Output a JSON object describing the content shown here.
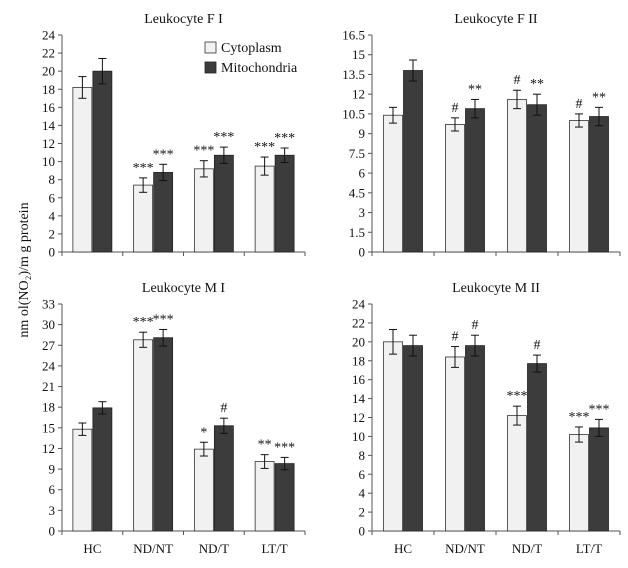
{
  "shared_ylabel": "nm ol(NO₂)/m g protein",
  "legend": {
    "placement": "top-right of first panel",
    "items": [
      {
        "label": "Cytoplasm",
        "color": "#f1f1f1"
      },
      {
        "label": "Mitochondria",
        "color": "#3c3c3c"
      }
    ]
  },
  "chart_data": [
    {
      "type": "bar",
      "title": "Leukocyte F I",
      "categories": [
        "HC",
        "ND/NT",
        "ND/T",
        "LT/T"
      ],
      "series": [
        {
          "name": "Cytoplasm",
          "values": [
            18.2,
            7.4,
            9.2,
            9.5
          ],
          "errors": [
            1.2,
            0.8,
            0.9,
            1.0
          ]
        },
        {
          "name": "Mitochondria",
          "values": [
            20.0,
            8.8,
            10.7,
            10.7
          ],
          "errors": [
            1.4,
            0.9,
            0.9,
            0.8
          ]
        }
      ],
      "annotations": [
        {
          "category": "ND/NT",
          "series": "Cytoplasm",
          "text": "***"
        },
        {
          "category": "ND/NT",
          "series": "Mitochondria",
          "text": "***"
        },
        {
          "category": "ND/T",
          "series": "Cytoplasm",
          "text": "***"
        },
        {
          "category": "ND/T",
          "series": "Mitochondria",
          "text": "***"
        },
        {
          "category": "LT/T",
          "series": "Cytoplasm",
          "text": "***"
        },
        {
          "category": "LT/T",
          "series": "Mitochondria",
          "text": "***"
        }
      ],
      "ylim": [
        0,
        24
      ],
      "yticks": [
        "0",
        "2",
        "4",
        "6",
        "8",
        "10",
        "12",
        "14",
        "16",
        "18",
        "20",
        "22",
        "24"
      ],
      "show_xlabels": false,
      "grid": false
    },
    {
      "type": "bar",
      "title": "Leukocyte F II",
      "categories": [
        "HC",
        "ND/NT",
        "ND/T",
        "LT/T"
      ],
      "series": [
        {
          "name": "Cytoplasm",
          "values": [
            10.4,
            9.7,
            11.6,
            10.0
          ],
          "errors": [
            0.6,
            0.5,
            0.7,
            0.5
          ]
        },
        {
          "name": "Mitochondria",
          "values": [
            13.8,
            10.9,
            11.2,
            10.3
          ],
          "errors": [
            0.8,
            0.7,
            0.8,
            0.7
          ]
        }
      ],
      "annotations": [
        {
          "category": "ND/NT",
          "series": "Cytoplasm",
          "text": "#"
        },
        {
          "category": "ND/NT",
          "series": "Mitochondria",
          "text": "**"
        },
        {
          "category": "ND/T",
          "series": "Cytoplasm",
          "text": "#"
        },
        {
          "category": "ND/T",
          "series": "Mitochondria",
          "text": "**"
        },
        {
          "category": "LT/T",
          "series": "Cytoplasm",
          "text": "#"
        },
        {
          "category": "LT/T",
          "series": "Mitochondria",
          "text": "**"
        }
      ],
      "ylim": [
        0,
        16.5
      ],
      "yticks": [
        "0",
        "1.5",
        "3",
        "4.5",
        "6",
        "7.5",
        "9",
        "10.5",
        "12",
        "13.5",
        "15",
        "16.5"
      ],
      "show_xlabels": false,
      "grid": false
    },
    {
      "type": "bar",
      "title": "Leukocyte M I",
      "categories": [
        "HC",
        "ND/NT",
        "ND/T",
        "LT/T"
      ],
      "series": [
        {
          "name": "Cytoplasm",
          "values": [
            14.8,
            27.8,
            11.9,
            10.1
          ],
          "errors": [
            0.9,
            1.1,
            1.0,
            1.0
          ]
        },
        {
          "name": "Mitochondria",
          "values": [
            17.9,
            28.1,
            15.3,
            9.8
          ],
          "errors": [
            0.9,
            1.2,
            1.1,
            0.9
          ]
        }
      ],
      "annotations": [
        {
          "category": "ND/NT",
          "series": "Cytoplasm",
          "text": "***"
        },
        {
          "category": "ND/NT",
          "series": "Mitochondria",
          "text": "***"
        },
        {
          "category": "ND/T",
          "series": "Cytoplasm",
          "text": "*"
        },
        {
          "category": "ND/T",
          "series": "Mitochondria",
          "text": "#"
        },
        {
          "category": "LT/T",
          "series": "Cytoplasm",
          "text": "**"
        },
        {
          "category": "LT/T",
          "series": "Mitochondria",
          "text": "***"
        }
      ],
      "ylim": [
        0,
        33
      ],
      "yticks": [
        "0",
        "3",
        "6",
        "9",
        "12",
        "15",
        "18",
        "21",
        "24",
        "27",
        "30",
        "33"
      ],
      "show_xlabels": true,
      "grid": false
    },
    {
      "type": "bar",
      "title": "Leukocyte M II",
      "categories": [
        "HC",
        "ND/NT",
        "ND/T",
        "LT/T"
      ],
      "series": [
        {
          "name": "Cytoplasm",
          "values": [
            20.0,
            18.4,
            12.2,
            10.2
          ],
          "errors": [
            1.3,
            1.1,
            1.0,
            0.8
          ]
        },
        {
          "name": "Mitochondria",
          "values": [
            19.6,
            19.6,
            17.7,
            10.9
          ],
          "errors": [
            1.1,
            1.1,
            0.9,
            0.9
          ]
        }
      ],
      "annotations": [
        {
          "category": "ND/NT",
          "series": "Cytoplasm",
          "text": "#"
        },
        {
          "category": "ND/NT",
          "series": "Mitochondria",
          "text": "#"
        },
        {
          "category": "ND/T",
          "series": "Cytoplasm",
          "text": "***"
        },
        {
          "category": "ND/T",
          "series": "Mitochondria",
          "text": "#"
        },
        {
          "category": "LT/T",
          "series": "Cytoplasm",
          "text": "***"
        },
        {
          "category": "LT/T",
          "series": "Mitochondria",
          "text": "***"
        }
      ],
      "ylim": [
        0,
        24
      ],
      "yticks": [
        "0",
        "2",
        "4",
        "6",
        "8",
        "10",
        "12",
        "14",
        "16",
        "18",
        "20",
        "22",
        "24"
      ],
      "show_xlabels": true,
      "grid": false
    }
  ]
}
